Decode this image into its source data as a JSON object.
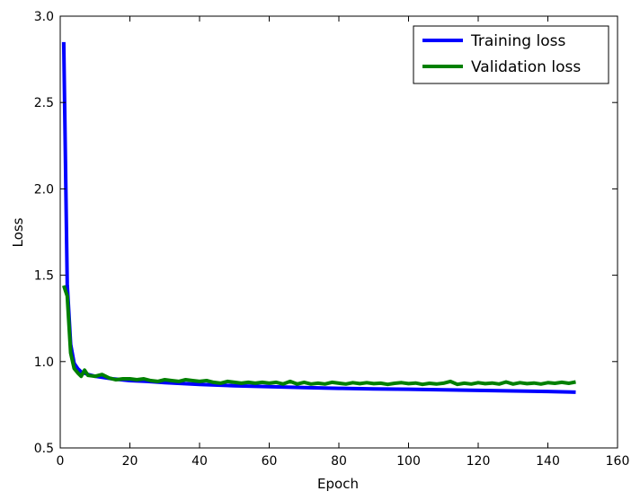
{
  "chart_data": {
    "type": "line",
    "xlabel": "Epoch",
    "ylabel": "Loss",
    "xlim": [
      0,
      160
    ],
    "ylim": [
      0.5,
      3.0
    ],
    "xticks": [
      "0",
      "20",
      "40",
      "60",
      "80",
      "100",
      "120",
      "140",
      "160"
    ],
    "yticks": [
      "0.5",
      "1.0",
      "1.5",
      "2.0",
      "2.5",
      "3.0"
    ],
    "grid": false,
    "legend_position": "top-right",
    "series": [
      {
        "name": "Training loss",
        "color": "#0000ff",
        "points": [
          [
            1,
            2.85
          ],
          [
            2,
            1.45
          ],
          [
            3,
            1.1
          ],
          [
            4,
            0.99
          ],
          [
            5,
            0.96
          ],
          [
            6,
            0.94
          ],
          [
            8,
            0.925
          ],
          [
            10,
            0.915
          ],
          [
            15,
            0.9
          ],
          [
            20,
            0.89
          ],
          [
            25,
            0.885
          ],
          [
            30,
            0.878
          ],
          [
            40,
            0.868
          ],
          [
            50,
            0.86
          ],
          [
            60,
            0.855
          ],
          [
            70,
            0.85
          ],
          [
            80,
            0.845
          ],
          [
            90,
            0.842
          ],
          [
            100,
            0.84
          ],
          [
            110,
            0.837
          ],
          [
            120,
            0.833
          ],
          [
            130,
            0.83
          ],
          [
            140,
            0.827
          ],
          [
            148,
            0.823
          ]
        ]
      },
      {
        "name": "Validation loss",
        "color": "#008000",
        "points": [
          [
            1,
            1.44
          ],
          [
            2,
            1.38
          ],
          [
            3,
            1.05
          ],
          [
            4,
            0.96
          ],
          [
            5,
            0.935
          ],
          [
            6,
            0.915
          ],
          [
            7,
            0.95
          ],
          [
            8,
            0.92
          ],
          [
            10,
            0.915
          ],
          [
            12,
            0.925
          ],
          [
            14,
            0.905
          ],
          [
            16,
            0.895
          ],
          [
            18,
            0.9
          ],
          [
            20,
            0.9
          ],
          [
            22,
            0.895
          ],
          [
            24,
            0.9
          ],
          [
            26,
            0.89
          ],
          [
            28,
            0.885
          ],
          [
            30,
            0.895
          ],
          [
            32,
            0.89
          ],
          [
            34,
            0.885
          ],
          [
            36,
            0.895
          ],
          [
            38,
            0.89
          ],
          [
            40,
            0.885
          ],
          [
            42,
            0.89
          ],
          [
            44,
            0.88
          ],
          [
            46,
            0.875
          ],
          [
            48,
            0.885
          ],
          [
            50,
            0.88
          ],
          [
            52,
            0.875
          ],
          [
            54,
            0.88
          ],
          [
            56,
            0.875
          ],
          [
            58,
            0.88
          ],
          [
            60,
            0.875
          ],
          [
            62,
            0.88
          ],
          [
            64,
            0.87
          ],
          [
            66,
            0.885
          ],
          [
            68,
            0.87
          ],
          [
            70,
            0.88
          ],
          [
            72,
            0.87
          ],
          [
            74,
            0.875
          ],
          [
            76,
            0.87
          ],
          [
            78,
            0.88
          ],
          [
            80,
            0.875
          ],
          [
            82,
            0.87
          ],
          [
            84,
            0.878
          ],
          [
            86,
            0.872
          ],
          [
            88,
            0.878
          ],
          [
            90,
            0.872
          ],
          [
            92,
            0.875
          ],
          [
            94,
            0.868
          ],
          [
            96,
            0.874
          ],
          [
            98,
            0.878
          ],
          [
            100,
            0.872
          ],
          [
            102,
            0.876
          ],
          [
            104,
            0.868
          ],
          [
            106,
            0.874
          ],
          [
            108,
            0.87
          ],
          [
            110,
            0.875
          ],
          [
            112,
            0.885
          ],
          [
            114,
            0.868
          ],
          [
            116,
            0.875
          ],
          [
            118,
            0.87
          ],
          [
            120,
            0.878
          ],
          [
            122,
            0.872
          ],
          [
            124,
            0.876
          ],
          [
            126,
            0.87
          ],
          [
            128,
            0.882
          ],
          [
            130,
            0.87
          ],
          [
            132,
            0.878
          ],
          [
            134,
            0.872
          ],
          [
            136,
            0.876
          ],
          [
            138,
            0.87
          ],
          [
            140,
            0.878
          ],
          [
            142,
            0.874
          ],
          [
            144,
            0.88
          ],
          [
            146,
            0.874
          ],
          [
            148,
            0.882
          ]
        ]
      }
    ]
  }
}
